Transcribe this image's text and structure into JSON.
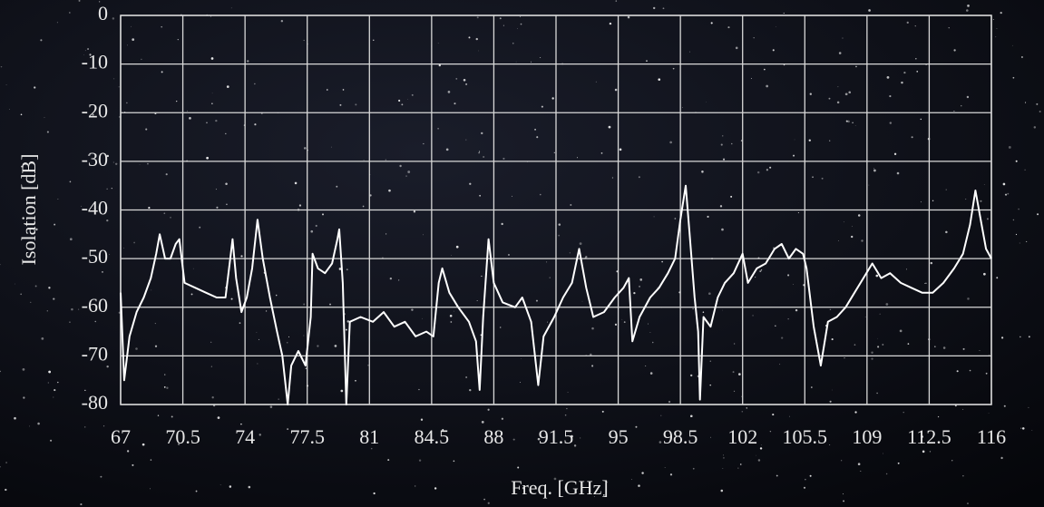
{
  "chart_data": {
    "type": "line",
    "x_label": "Freq. [GHz]",
    "y_label": "Isolation [dB]",
    "x": [
      67.0,
      67.2,
      67.5,
      67.9,
      68.3,
      68.7,
      69.0,
      69.2,
      69.5,
      69.8,
      70.1,
      70.3,
      70.6,
      71.2,
      71.8,
      72.4,
      72.9,
      73.2,
      73.3,
      73.5,
      73.8,
      74.1,
      74.4,
      74.7,
      75.0,
      75.4,
      75.8,
      76.1,
      76.4,
      76.6,
      77.0,
      77.4,
      77.7,
      77.8,
      78.1,
      78.5,
      78.9,
      79.2,
      79.3,
      79.5,
      79.7,
      79.9,
      80.5,
      81.2,
      81.8,
      82.4,
      83.0,
      83.6,
      84.2,
      84.6,
      84.9,
      85.1,
      85.5,
      86.0,
      86.6,
      87.0,
      87.2,
      87.4,
      87.7,
      88.0,
      88.5,
      89.2,
      89.6,
      90.1,
      90.5,
      90.8,
      91.4,
      91.9,
      92.4,
      92.8,
      93.2,
      93.6,
      94.2,
      94.8,
      95.3,
      95.6,
      95.8,
      96.2,
      96.8,
      97.3,
      97.8,
      98.2,
      98.5,
      98.8,
      99.0,
      99.3,
      99.5,
      99.6,
      99.8,
      100.2,
      100.6,
      101.0,
      101.5,
      102.0,
      102.3,
      102.8,
      103.3,
      103.8,
      104.2,
      104.6,
      105.0,
      105.4,
      105.6,
      106.0,
      106.4,
      106.8,
      107.3,
      107.8,
      108.3,
      108.8,
      109.3,
      109.8,
      110.3,
      110.9,
      111.5,
      112.1,
      112.7,
      113.3,
      113.9,
      114.4,
      114.8,
      115.1,
      115.4,
      115.7,
      116.0
    ],
    "series": [
      {
        "color": "#ffffff",
        "values": [
          -57,
          -75,
          -66,
          -61,
          -58,
          -54,
          -49,
          -45,
          -50,
          -50,
          -47,
          -46,
          -55,
          -56,
          -57,
          -58,
          -58,
          -49,
          -46,
          -54,
          -61,
          -58,
          -52,
          -42,
          -50,
          -58,
          -65,
          -70,
          -80,
          -72,
          -69,
          -72,
          -62,
          -49,
          -52,
          -53,
          -51,
          -46,
          -44,
          -55,
          -80,
          -63,
          -62,
          -63,
          -61,
          -64,
          -63,
          -66,
          -65,
          -66,
          -55,
          -52,
          -57,
          -60,
          -63,
          -67,
          -77,
          -62,
          -46,
          -55,
          -59,
          -60,
          -58,
          -63,
          -76,
          -66,
          -62,
          -58,
          -55,
          -48,
          -56,
          -62,
          -61,
          -58,
          -56,
          -54,
          -67,
          -62,
          -58,
          -56,
          -53,
          -50,
          -42,
          -35,
          -44,
          -58,
          -65,
          -79,
          -62,
          -64,
          -58,
          -55,
          -53,
          -49,
          -55,
          -52,
          -51,
          -48,
          -47,
          -50,
          -48,
          -49,
          -52,
          -64,
          -72,
          -63,
          -62,
          -60,
          -57,
          -54,
          -51,
          -54,
          -53,
          -55,
          -56,
          -57,
          -57,
          -55,
          -52,
          -49,
          -43,
          -36,
          -42,
          -48,
          -50
        ]
      }
    ],
    "xlim": [
      67,
      116
    ],
    "ylim": [
      -80,
      0
    ],
    "xticks": [
      67,
      70.5,
      74,
      77.5,
      81,
      84.5,
      88,
      91.5,
      95,
      98.5,
      102,
      105.5,
      109,
      112.5,
      116
    ],
    "yticks": [
      0,
      -10,
      -20,
      -30,
      -40,
      -50,
      -60,
      -70,
      -80
    ],
    "grid": true
  }
}
